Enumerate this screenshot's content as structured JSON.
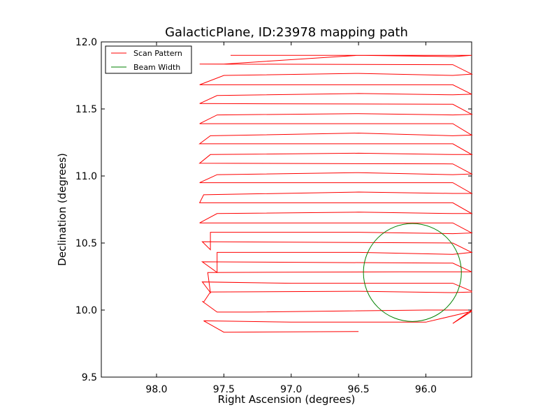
{
  "chart_data": {
    "type": "line",
    "title": "GalacticPlane, ID:23978 mapping path",
    "xlabel": "Right Ascension (degrees)",
    "ylabel": "Declination (degrees)",
    "xlim": [
      98.41,
      95.66
    ],
    "ylim": [
      9.5,
      12.0
    ],
    "x_ticks": [
      "98.0",
      "97.5",
      "97.0",
      "96.5",
      "96.0"
    ],
    "x_tick_values": [
      98.0,
      97.5,
      97.0,
      96.5,
      96.0
    ],
    "y_ticks": [
      "9.5",
      "10.0",
      "10.5",
      "11.0",
      "11.5",
      "12.0"
    ],
    "y_tick_values": [
      9.5,
      10.0,
      10.5,
      11.0,
      11.5,
      12.0
    ],
    "grid": false,
    "legend_position": "top-left",
    "series": [
      {
        "name": "Scan Pattern",
        "color": "#ff0000",
        "points": [
          [
            96.5,
            9.84
          ],
          [
            97.5,
            9.835
          ],
          [
            97.65,
            9.92
          ],
          [
            97.0,
            9.91
          ],
          [
            96.0,
            9.91
          ],
          [
            95.66,
            9.99
          ],
          [
            95.66,
            10.0
          ],
          [
            95.66,
            10.0
          ],
          [
            95.8,
            9.9
          ],
          [
            95.66,
            9.99
          ],
          [
            95.66,
            10.0
          ],
          [
            96.0,
            10.0
          ],
          [
            97.3,
            9.985
          ],
          [
            97.55,
            9.985
          ],
          [
            97.66,
            10.065
          ],
          [
            97.65,
            10.06
          ],
          [
            97.6,
            10.135
          ],
          [
            96.5,
            10.14
          ],
          [
            95.8,
            10.13
          ],
          [
            95.66,
            10.135
          ],
          [
            95.66,
            10.14
          ],
          [
            95.8,
            10.2
          ],
          [
            97.0,
            10.2
          ],
          [
            97.66,
            10.21
          ],
          [
            97.6,
            10.13
          ],
          [
            97.62,
            10.28
          ],
          [
            96.2,
            10.285
          ],
          [
            95.66,
            10.285
          ],
          [
            95.66,
            10.285
          ],
          [
            95.8,
            10.35
          ],
          [
            97.66,
            10.36
          ],
          [
            97.55,
            10.28
          ],
          [
            97.55,
            10.43
          ],
          [
            96.5,
            10.43
          ],
          [
            95.8,
            10.415
          ],
          [
            95.66,
            10.43
          ],
          [
            95.66,
            10.43
          ],
          [
            95.8,
            10.5
          ],
          [
            97.66,
            10.51
          ],
          [
            97.6,
            10.45
          ],
          [
            97.6,
            10.58
          ],
          [
            96.5,
            10.58
          ],
          [
            95.8,
            10.57
          ],
          [
            95.66,
            10.575
          ],
          [
            95.66,
            10.575
          ],
          [
            95.8,
            10.65
          ],
          [
            97.68,
            10.65
          ],
          [
            97.55,
            10.72
          ],
          [
            96.5,
            10.73
          ],
          [
            95.8,
            10.72
          ],
          [
            95.66,
            10.72
          ],
          [
            95.66,
            10.72
          ],
          [
            95.8,
            10.8
          ],
          [
            97.68,
            10.8
          ],
          [
            97.65,
            10.86
          ],
          [
            96.5,
            10.88
          ],
          [
            95.8,
            10.87
          ],
          [
            95.66,
            10.87
          ],
          [
            95.66,
            10.87
          ],
          [
            95.8,
            10.95
          ],
          [
            97.68,
            10.95
          ],
          [
            97.55,
            11.01
          ],
          [
            96.5,
            11.025
          ],
          [
            95.8,
            11.01
          ],
          [
            95.66,
            11.015
          ],
          [
            95.66,
            11.015
          ],
          [
            95.8,
            11.09
          ],
          [
            97.68,
            11.095
          ],
          [
            97.6,
            11.16
          ],
          [
            96.5,
            11.17
          ],
          [
            95.8,
            11.16
          ],
          [
            95.66,
            11.16
          ],
          [
            95.66,
            11.16
          ],
          [
            95.8,
            11.24
          ],
          [
            97.68,
            11.24
          ],
          [
            97.6,
            11.3
          ],
          [
            96.5,
            11.32
          ],
          [
            95.8,
            11.3
          ],
          [
            95.66,
            11.305
          ],
          [
            95.66,
            11.305
          ],
          [
            95.8,
            11.39
          ],
          [
            97.68,
            11.39
          ],
          [
            97.55,
            11.455
          ],
          [
            96.5,
            11.465
          ],
          [
            95.8,
            11.455
          ],
          [
            95.66,
            11.46
          ],
          [
            95.66,
            11.46
          ],
          [
            95.8,
            11.535
          ],
          [
            97.68,
            11.54
          ],
          [
            97.55,
            11.6
          ],
          [
            96.5,
            11.615
          ],
          [
            95.8,
            11.605
          ],
          [
            95.66,
            11.61
          ],
          [
            95.66,
            11.61
          ],
          [
            95.8,
            11.68
          ],
          [
            97.68,
            11.68
          ],
          [
            97.5,
            11.75
          ],
          [
            96.5,
            11.765
          ],
          [
            95.8,
            11.75
          ],
          [
            95.66,
            11.76
          ],
          [
            95.66,
            11.76
          ],
          [
            95.8,
            11.83
          ],
          [
            97.68,
            11.835
          ],
          [
            97.5,
            11.835
          ],
          [
            96.5,
            11.9
          ],
          [
            95.8,
            11.89
          ],
          [
            95.66,
            11.9
          ],
          [
            95.66,
            11.9
          ],
          [
            96.5,
            11.9
          ],
          [
            97.45,
            11.9
          ]
        ]
      },
      {
        "name": "Beam Width",
        "color": "#008000",
        "circle": {
          "center": [
            96.1,
            10.28
          ],
          "radius_deg": 0.365
        }
      }
    ]
  }
}
